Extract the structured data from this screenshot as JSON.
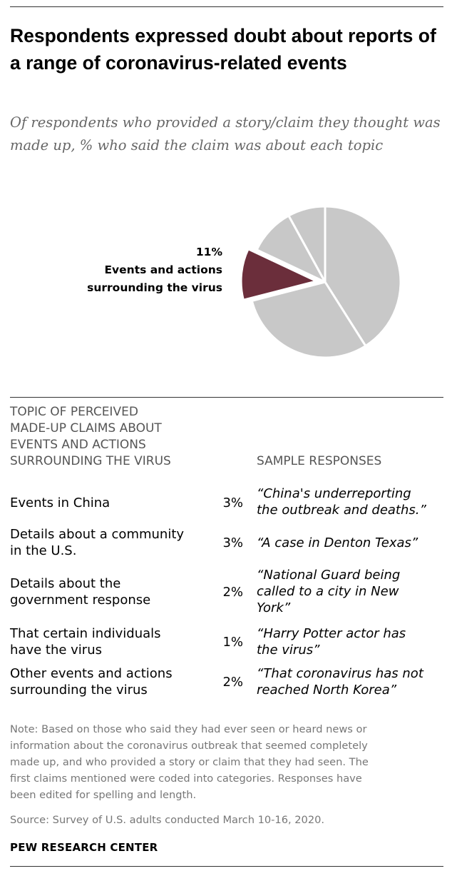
{
  "title": "Respondents expressed doubt about reports of a range of coronavirus-related events",
  "subtitle": "Of respondents who provided a story/claim they thought was made up, % who said the claim was about each topic",
  "chart_data": {
    "type": "pie",
    "slices": [
      {
        "label": "",
        "value": 41,
        "color": "#c8c8c8"
      },
      {
        "label": "",
        "value": 30,
        "color": "#c8c8c8"
      },
      {
        "label": "Events and actions surrounding the virus",
        "value": 11,
        "color": "#6b2e3b",
        "highlighted": true
      },
      {
        "label": "",
        "value": 10,
        "color": "#c8c8c8"
      },
      {
        "label": "",
        "value": 8,
        "color": "#c8c8c8"
      }
    ],
    "highlight_value_label": "11%",
    "highlight_text_lines": [
      "Events and actions",
      "surrounding the virus"
    ]
  },
  "table": {
    "topic_header_lines": [
      "TOPIC OF PERCEIVED",
      "MADE-UP CLAIMS ABOUT",
      "EVENTS AND ACTIONS",
      "SURROUNDING THE VIRUS"
    ],
    "sample_header": "SAMPLE RESPONSES",
    "rows": [
      {
        "topic": [
          "Events in China"
        ],
        "pct": "3%",
        "response": [
          "“China's underreporting",
          "the outbreak and deaths.”"
        ]
      },
      {
        "topic": [
          "Details about a community",
          "in the U.S."
        ],
        "pct": "3%",
        "response": [
          "“A case in Denton Texas”"
        ]
      },
      {
        "topic": [
          "Details about the",
          "government response"
        ],
        "pct": "2%",
        "response": [
          "“National Guard being",
          "called to a city in New",
          "York”"
        ]
      },
      {
        "topic": [
          "That certain individuals",
          "have the virus"
        ],
        "pct": "1%",
        "response": [
          "“Harry Potter actor has",
          "the virus”"
        ]
      },
      {
        "topic": [
          "Other events and actions",
          "surrounding the virus"
        ],
        "pct": "2%",
        "response": [
          "“That coronavirus has not",
          "reached North Korea”"
        ]
      }
    ]
  },
  "note_lines": [
    "Note: Based on those who said they had ever seen or heard news or",
    "information about the coronavirus outbreak that seemed completely",
    "made up, and who provided a story or claim that they had seen. The",
    "first claims mentioned were coded into categories. Responses have",
    "been edited for spelling and length."
  ],
  "source": "Source: Survey of U.S. adults conducted March 10-16, 2020.",
  "brand": "PEW RESEARCH CENTER"
}
